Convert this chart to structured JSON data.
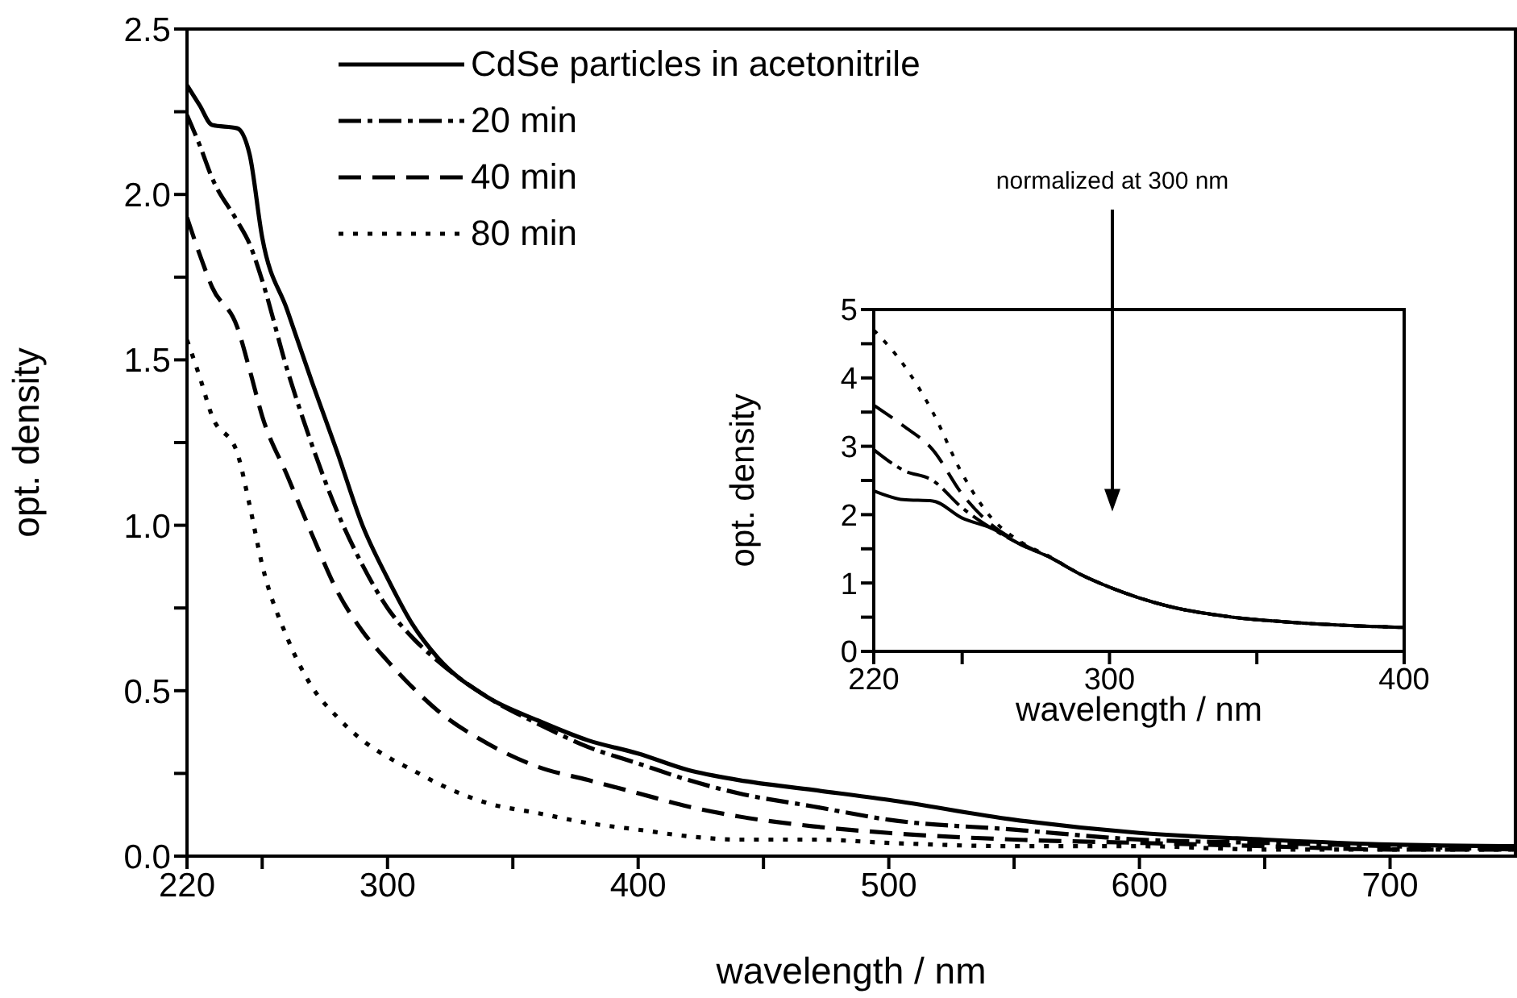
{
  "chart_data": [
    {
      "type": "line",
      "xlabel": "wavelength / nm",
      "ylabel": "opt. density",
      "x": [
        220,
        225,
        230,
        240,
        245,
        250,
        260,
        270,
        280,
        290,
        300,
        310,
        320,
        340,
        360,
        380,
        400,
        420,
        440,
        470,
        500,
        550,
        600,
        650,
        700,
        750
      ],
      "series": [
        {
          "name": "CdSe particles in acetonitrile",
          "color": "#000000",
          "line_style": "solid",
          "values": [
            2.33,
            2.27,
            2.21,
            2.2,
            2.12,
            1.87,
            1.65,
            1.43,
            1.22,
            1.0,
            0.84,
            0.7,
            0.6,
            0.48,
            0.41,
            0.35,
            0.31,
            0.26,
            0.23,
            0.2,
            0.17,
            0.11,
            0.07,
            0.05,
            0.035,
            0.03
          ]
        },
        {
          "name": "20 min",
          "color": "#000000",
          "line_style": "dashdot",
          "values": [
            2.24,
            2.15,
            2.05,
            1.92,
            1.85,
            1.74,
            1.47,
            1.24,
            1.04,
            0.88,
            0.75,
            0.66,
            0.59,
            0.48,
            0.4,
            0.33,
            0.28,
            0.23,
            0.19,
            0.15,
            0.11,
            0.08,
            0.05,
            0.04,
            0.03,
            0.02
          ]
        },
        {
          "name": "40 min",
          "color": "#000000",
          "line_style": "dashed",
          "values": [
            1.93,
            1.82,
            1.72,
            1.6,
            1.47,
            1.33,
            1.15,
            0.97,
            0.8,
            0.68,
            0.59,
            0.51,
            0.44,
            0.34,
            0.27,
            0.23,
            0.19,
            0.15,
            0.12,
            0.09,
            0.07,
            0.05,
            0.04,
            0.03,
            0.02,
            0.02
          ]
        },
        {
          "name": "80 min",
          "color": "#000000",
          "line_style": "dotted",
          "values": [
            1.56,
            1.45,
            1.33,
            1.22,
            1.06,
            0.88,
            0.66,
            0.51,
            0.42,
            0.35,
            0.3,
            0.26,
            0.22,
            0.16,
            0.13,
            0.1,
            0.08,
            0.06,
            0.05,
            0.05,
            0.04,
            0.03,
            0.03,
            0.02,
            0.02,
            0.02
          ]
        }
      ],
      "xlim": [
        220,
        750
      ],
      "xticks": [
        220,
        {
          "value": 250,
          "label": null
        },
        300,
        {
          "value": 350,
          "label": null
        },
        400,
        {
          "value": 450,
          "label": null
        },
        500,
        {
          "value": 550,
          "label": null
        },
        600,
        {
          "value": 650,
          "label": null
        },
        700
      ],
      "ylim": [
        0,
        2.5
      ],
      "yticks": [
        "0.0",
        {
          "value": 0.25,
          "label": null
        },
        {
          "value": 0.5,
          "label": "0.5"
        },
        {
          "value": 0.75,
          "label": null
        },
        {
          "value": 1,
          "label": "1.0"
        },
        {
          "value": 1.25,
          "label": null
        },
        {
          "value": 1.5,
          "label": "1.5"
        },
        {
          "value": 1.75,
          "label": null
        },
        {
          "value": 2,
          "label": "2.0"
        },
        {
          "value": 2.25,
          "label": null
        },
        {
          "value": 2.5,
          "label": "2.5"
        }
      ],
      "legend": "top left",
      "grid": false
    },
    {
      "type": "line",
      "xlabel": "wavelength / nm",
      "ylabel": "opt. density",
      "annotations": [
        "normalized at 300 nm"
      ],
      "x": [
        220,
        230,
        240,
        250,
        260,
        270,
        280,
        290,
        300,
        320,
        340,
        360,
        380,
        400
      ],
      "series": [
        {
          "color": "#000000",
          "line_style": "solid",
          "values": [
            2.35,
            2.22,
            2.2,
            1.95,
            1.8,
            1.56,
            1.37,
            1.13,
            0.94,
            0.66,
            0.51,
            0.43,
            0.38,
            0.35
          ]
        },
        {
          "color": "#000000",
          "line_style": "dashdot",
          "values": [
            2.95,
            2.65,
            2.5,
            2.1,
            1.8,
            1.56,
            1.37,
            1.13,
            0.94,
            0.66,
            0.51,
            0.43,
            0.38,
            0.35
          ]
        },
        {
          "color": "#000000",
          "line_style": "dashed",
          "values": [
            3.6,
            3.3,
            2.95,
            2.3,
            1.85,
            1.58,
            1.37,
            1.13,
            0.94,
            0.66,
            0.51,
            0.43,
            0.38,
            0.35
          ]
        },
        {
          "color": "#000000",
          "line_style": "dotted",
          "values": [
            4.7,
            4.2,
            3.5,
            2.6,
            1.95,
            1.6,
            1.38,
            1.13,
            0.94,
            0.66,
            0.51,
            0.43,
            0.38,
            0.35
          ]
        }
      ],
      "xlim": [
        220,
        400
      ],
      "xticks": [
        220,
        {
          "value": 250,
          "label": null
        },
        300,
        {
          "value": 350,
          "label": null
        },
        400
      ],
      "ylim": [
        0,
        5
      ],
      "yticks": [
        0,
        {
          "value": 0.5,
          "label": null
        },
        1,
        {
          "value": 1.5,
          "label": null
        },
        2,
        {
          "value": 2.5,
          "label": null
        },
        3,
        {
          "value": 3.5,
          "label": null
        },
        4,
        {
          "value": 4.5,
          "label": null
        },
        5
      ],
      "legend": false,
      "grid": false
    }
  ]
}
